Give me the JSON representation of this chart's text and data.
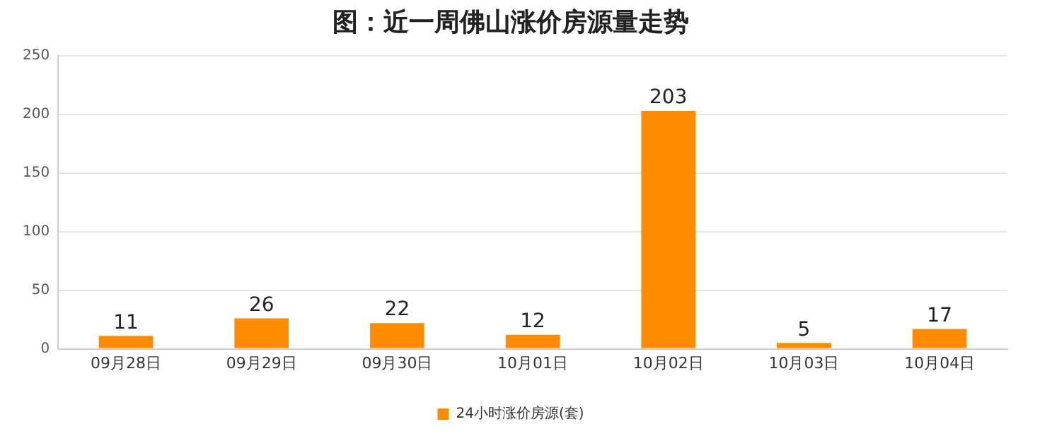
{
  "chart_data": {
    "type": "bar",
    "title": "图：近一周佛山涨价房源量走势",
    "categories": [
      "09月28日",
      "09月29日",
      "09月30日",
      "10月01日",
      "10月02日",
      "10月03日",
      "10月04日"
    ],
    "series": [
      {
        "name": "24小时涨价房源(套)",
        "color": "#ff8c00",
        "values": [
          11,
          26,
          22,
          12,
          203,
          5,
          17
        ]
      }
    ],
    "ylim": [
      0,
      250
    ],
    "yticks": [
      0,
      50,
      100,
      150,
      200,
      250
    ],
    "grid": "y",
    "legend": "bottom",
    "data_labels": true
  }
}
